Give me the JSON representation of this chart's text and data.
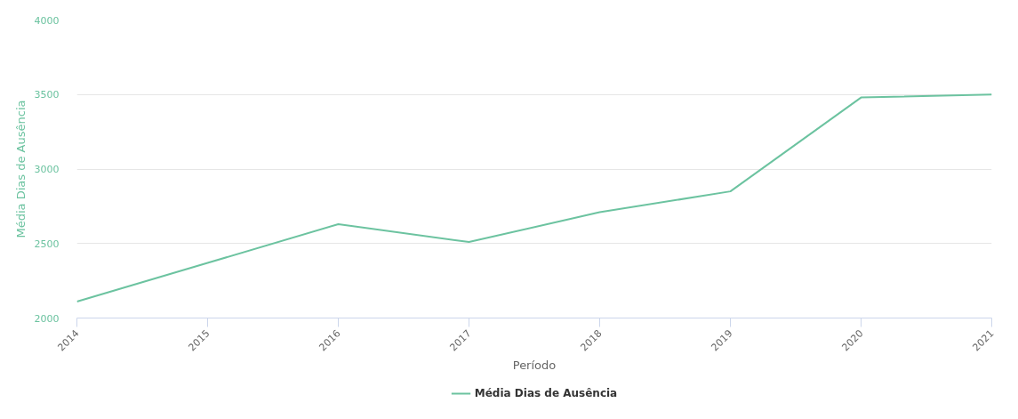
{
  "chart_data": {
    "type": "line",
    "xlabel": "Período",
    "ylabel": "Média Dias de Ausência",
    "categories": [
      "2014",
      "2015",
      "2016",
      "2017",
      "2018",
      "2019",
      "2020",
      "2021"
    ],
    "series": [
      {
        "name": "Média Dias de Ausência",
        "color": "#6cc3a0",
        "values": [
          2110,
          2370,
          2630,
          2510,
          2710,
          2850,
          3480,
          3500
        ]
      }
    ],
    "ylim": [
      2000,
      4000
    ],
    "yticks": [
      2000,
      2500,
      3000,
      3500,
      4000
    ],
    "grid": "y",
    "legend": "bottom",
    "marker": "none",
    "line_style": "solid"
  }
}
